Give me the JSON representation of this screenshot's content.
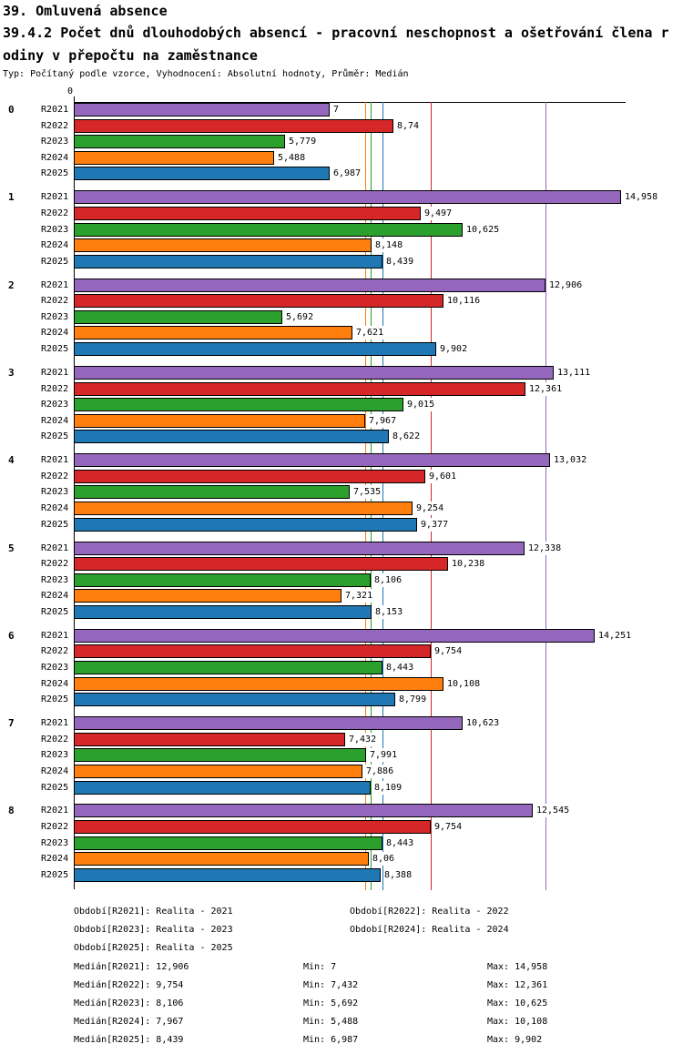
{
  "header": {
    "line1": "39. Omluvená absence",
    "line2": "39.4.2 Počet dnů dlouhodobých absencí - pracovní neschopnost a ošetřování člena r",
    "line3": "odiny v přepočtu na zaměstnance",
    "subtitle": "Typ: Počítaný podle vzorce, Vyhodnocení: Absolutní hodnoty, Průměr: Medián"
  },
  "chart_data": {
    "type": "bar",
    "orientation": "horizontal",
    "title": "39.4.2 Počet dnů dlouhodobých absencí - pracovní neschopnost a ošetřování člena rodiny v přepočtu na zaměstnance",
    "xlabel": "",
    "ylabel": "",
    "axis": {
      "min": 0,
      "max": 15.09,
      "origin_tick_label": "0",
      "grid": false
    },
    "series": [
      {
        "name": "R2021",
        "color": "#9467BD"
      },
      {
        "name": "R2022",
        "color": "#D62728"
      },
      {
        "name": "R2023",
        "color": "#2CA02C"
      },
      {
        "name": "R2024",
        "color": "#FF7F0E"
      },
      {
        "name": "R2025",
        "color": "#1F77B4"
      }
    ],
    "groups": [
      {
        "label": "0",
        "values": [
          7,
          8.74,
          5.779,
          5.488,
          6.987
        ],
        "display": [
          "7",
          "8,74",
          "5,779",
          "5,488",
          "6,987"
        ]
      },
      {
        "label": "1",
        "values": [
          14.958,
          9.497,
          10.625,
          8.148,
          8.439
        ],
        "display": [
          "14,958",
          "9,497",
          "10,625",
          "8,148",
          "8,439"
        ]
      },
      {
        "label": "2",
        "values": [
          12.906,
          10.116,
          5.692,
          7.621,
          9.902
        ],
        "display": [
          "12,906",
          "10,116",
          "5,692",
          "7,621",
          "9,902"
        ]
      },
      {
        "label": "3",
        "values": [
          13.111,
          12.361,
          9.015,
          7.967,
          8.622
        ],
        "display": [
          "13,111",
          "12,361",
          "9,015",
          "7,967",
          "8,622"
        ]
      },
      {
        "label": "4",
        "values": [
          13.032,
          9.601,
          7.535,
          9.254,
          9.377
        ],
        "display": [
          "13,032",
          "9,601",
          "7,535",
          "9,254",
          "9,377"
        ]
      },
      {
        "label": "5",
        "values": [
          12.338,
          10.238,
          8.106,
          7.321,
          8.153
        ],
        "display": [
          "12,338",
          "10,238",
          "8,106",
          "7,321",
          "8,153"
        ]
      },
      {
        "label": "6",
        "values": [
          14.251,
          9.754,
          8.443,
          10.108,
          8.799
        ],
        "display": [
          "14,251",
          "9,754",
          "8,443",
          "10,108",
          "8,799"
        ]
      },
      {
        "label": "7",
        "values": [
          10.623,
          7.432,
          7.991,
          7.886,
          8.109
        ],
        "display": [
          "10,623",
          "7,432",
          "7,991",
          "7,886",
          "8,109"
        ]
      },
      {
        "label": "8",
        "values": [
          12.545,
          9.754,
          8.443,
          8.06,
          8.388
        ],
        "display": [
          "12,545",
          "9,754",
          "8,443",
          "8,06",
          "8,388"
        ]
      }
    ],
    "median_lines": [
      {
        "series": "R2021",
        "value": 12.906,
        "color": "#9467BD"
      },
      {
        "series": "R2022",
        "value": 9.754,
        "color": "#D62728"
      },
      {
        "series": "R2023",
        "value": 8.106,
        "color": "#2CA02C"
      },
      {
        "series": "R2024",
        "value": 7.967,
        "color": "#FF7F0E"
      },
      {
        "series": "R2025",
        "value": 8.439,
        "color": "#1F77B4"
      }
    ]
  },
  "legend": {
    "periods": [
      {
        "text": "Období[R2021]: Realita - 2021",
        "row": 0,
        "col": 0
      },
      {
        "text": "Období[R2022]: Realita - 2022",
        "row": 0,
        "col": 1
      },
      {
        "text": "Období[R2023]: Realita - 2023",
        "row": 1,
        "col": 0
      },
      {
        "text": "Období[R2024]: Realita - 2024",
        "row": 1,
        "col": 1
      },
      {
        "text": "Období[R2025]: Realita - 2025",
        "row": 2,
        "col": 0
      }
    ],
    "stats": [
      {
        "median": "Medián[R2021]: 12,906",
        "min": "Min: 7",
        "max": "Max: 14,958"
      },
      {
        "median": "Medián[R2022]: 9,754",
        "min": "Min: 7,432",
        "max": "Max: 12,361"
      },
      {
        "median": "Medián[R2023]: 8,106",
        "min": "Min: 5,692",
        "max": "Max: 10,625"
      },
      {
        "median": "Medián[R2024]: 7,967",
        "min": "Min: 5,488",
        "max": "Max: 10,108"
      },
      {
        "median": "Medián[R2025]: 8,439",
        "min": "Min: 6,987",
        "max": "Max: 9,902"
      }
    ]
  }
}
